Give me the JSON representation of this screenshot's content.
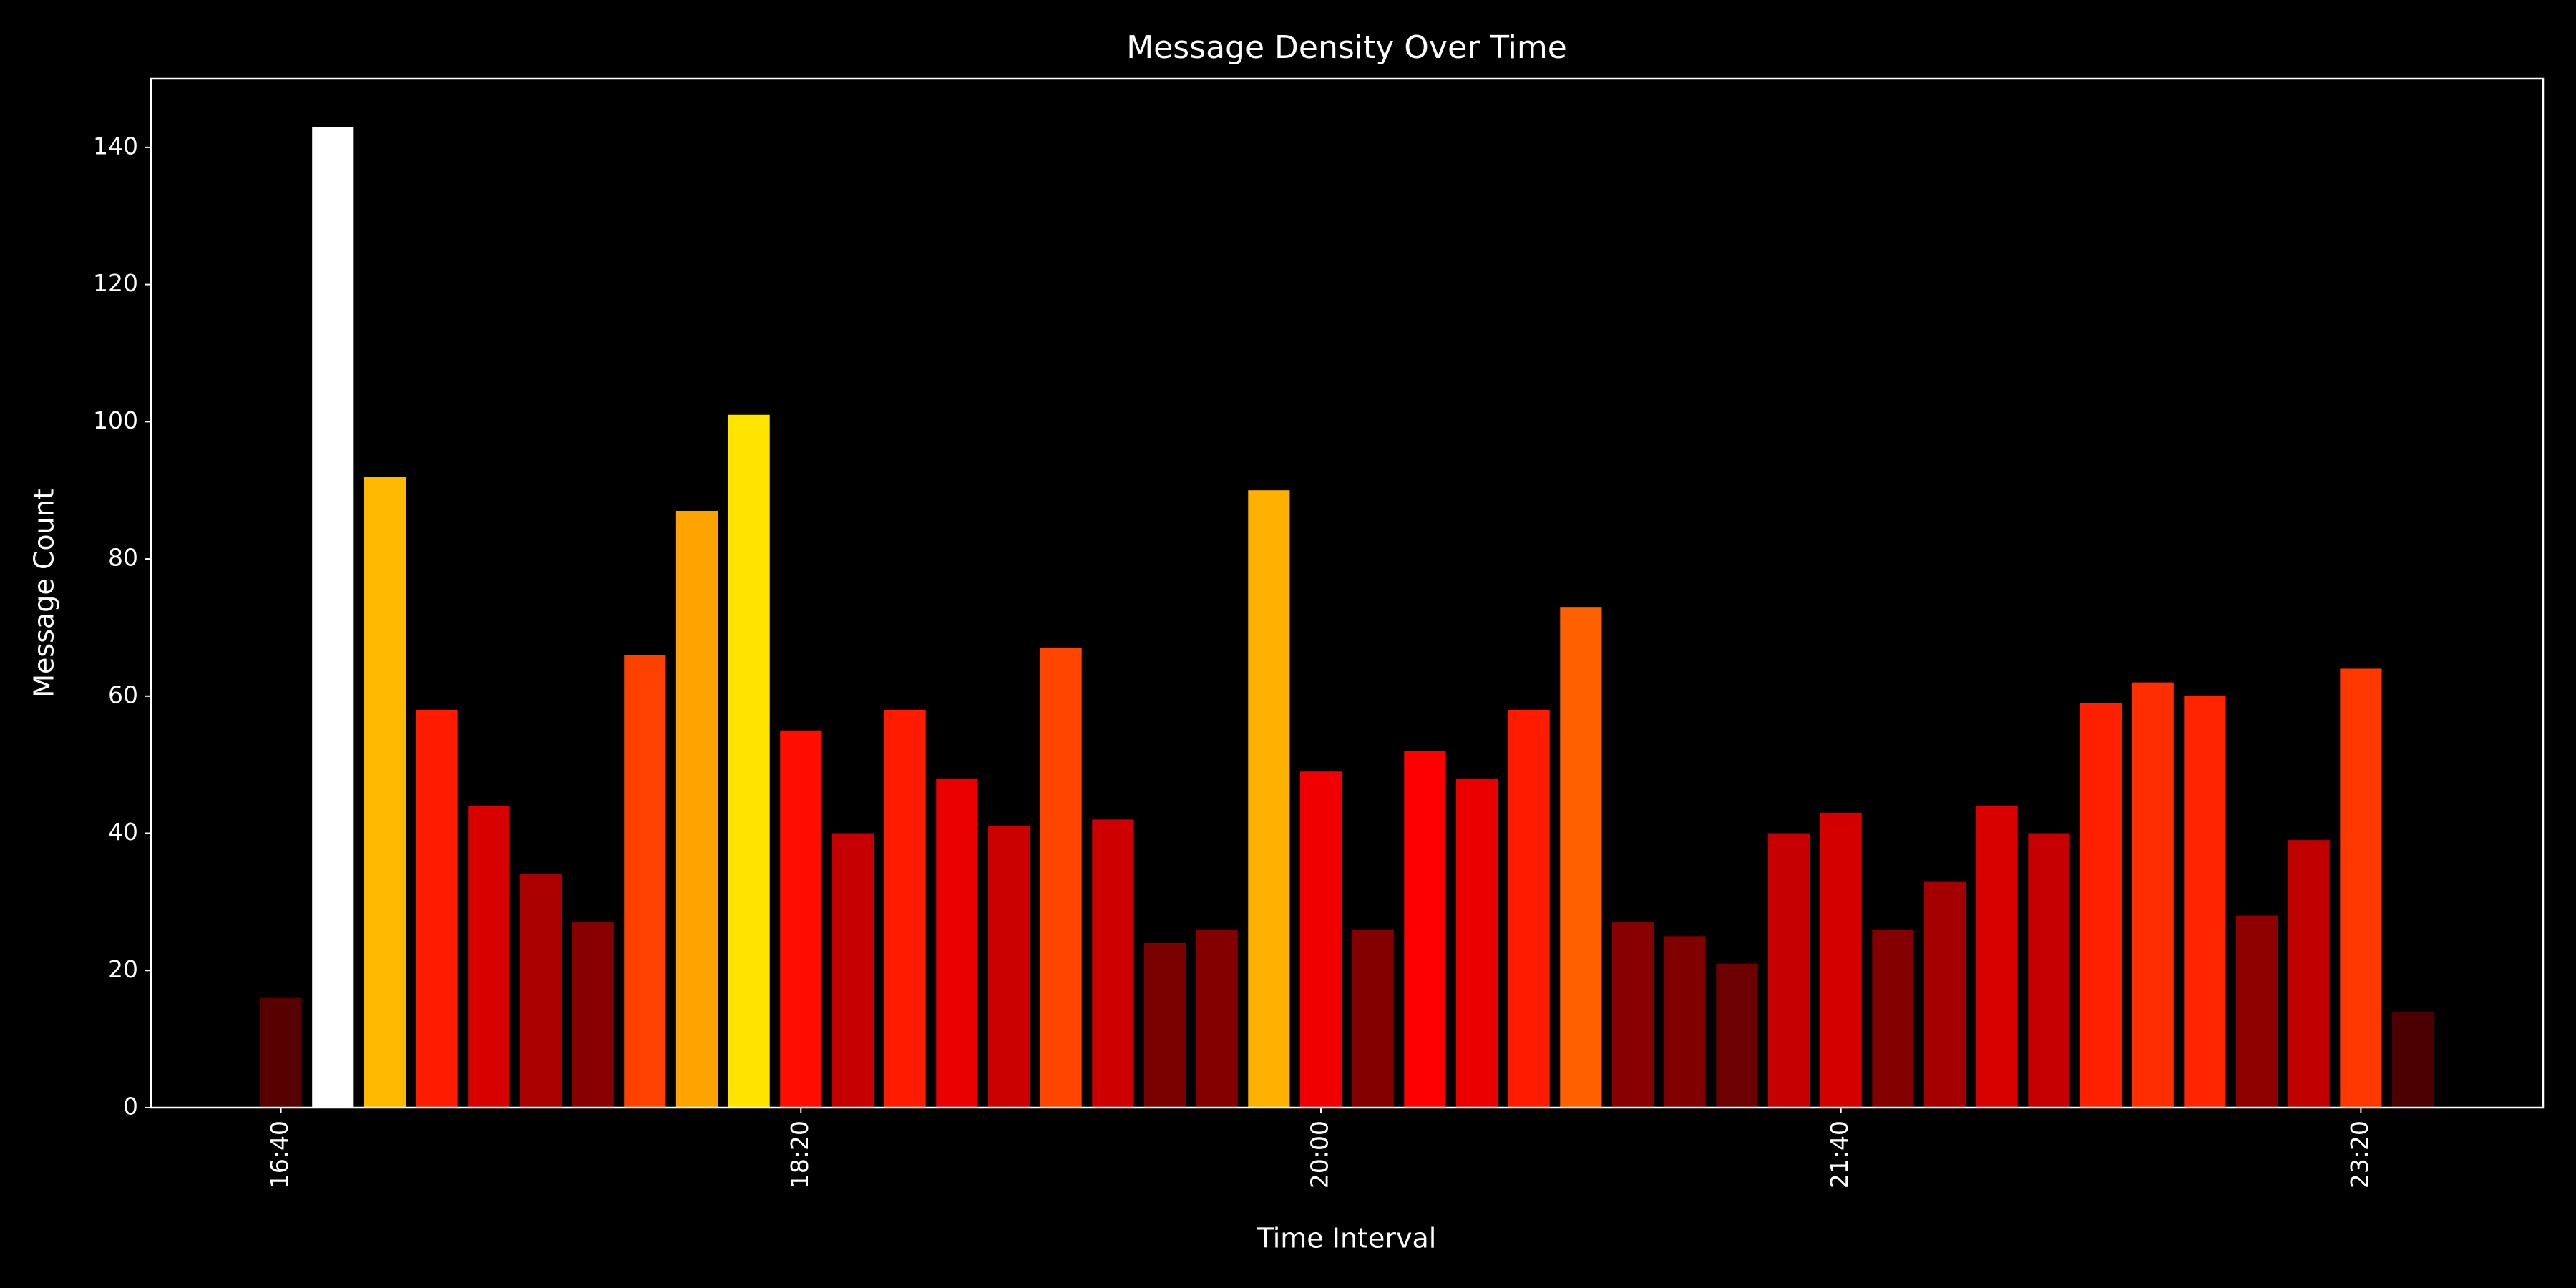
{
  "chart_data": {
    "type": "bar",
    "title": "Message Density Over Time",
    "x_label": "Time Interval",
    "y_label": "Message Count",
    "categories": [
      "16:40",
      null,
      null,
      null,
      null,
      null,
      null,
      null,
      null,
      null,
      "18:20",
      null,
      null,
      null,
      null,
      null,
      null,
      null,
      null,
      null,
      "20:00",
      null,
      null,
      null,
      null,
      null,
      null,
      null,
      null,
      null,
      "21:40",
      null,
      null,
      null,
      null,
      null,
      null,
      null,
      null,
      null,
      "23:20",
      null
    ],
    "values": [
      16,
      143,
      92,
      58,
      44,
      34,
      27,
      66,
      87,
      101,
      55,
      40,
      58,
      48,
      41,
      67,
      42,
      24,
      26,
      90,
      49,
      26,
      52,
      48,
      58,
      73,
      27,
      25,
      21,
      40,
      43,
      26,
      33,
      44,
      40,
      59,
      62,
      60,
      28,
      39,
      64,
      14
    ],
    "colormap": "hot",
    "ylim": [
      0,
      150
    ],
    "yticks": [
      0,
      20,
      40,
      60,
      80,
      100,
      120,
      140
    ],
    "grid": false
  }
}
